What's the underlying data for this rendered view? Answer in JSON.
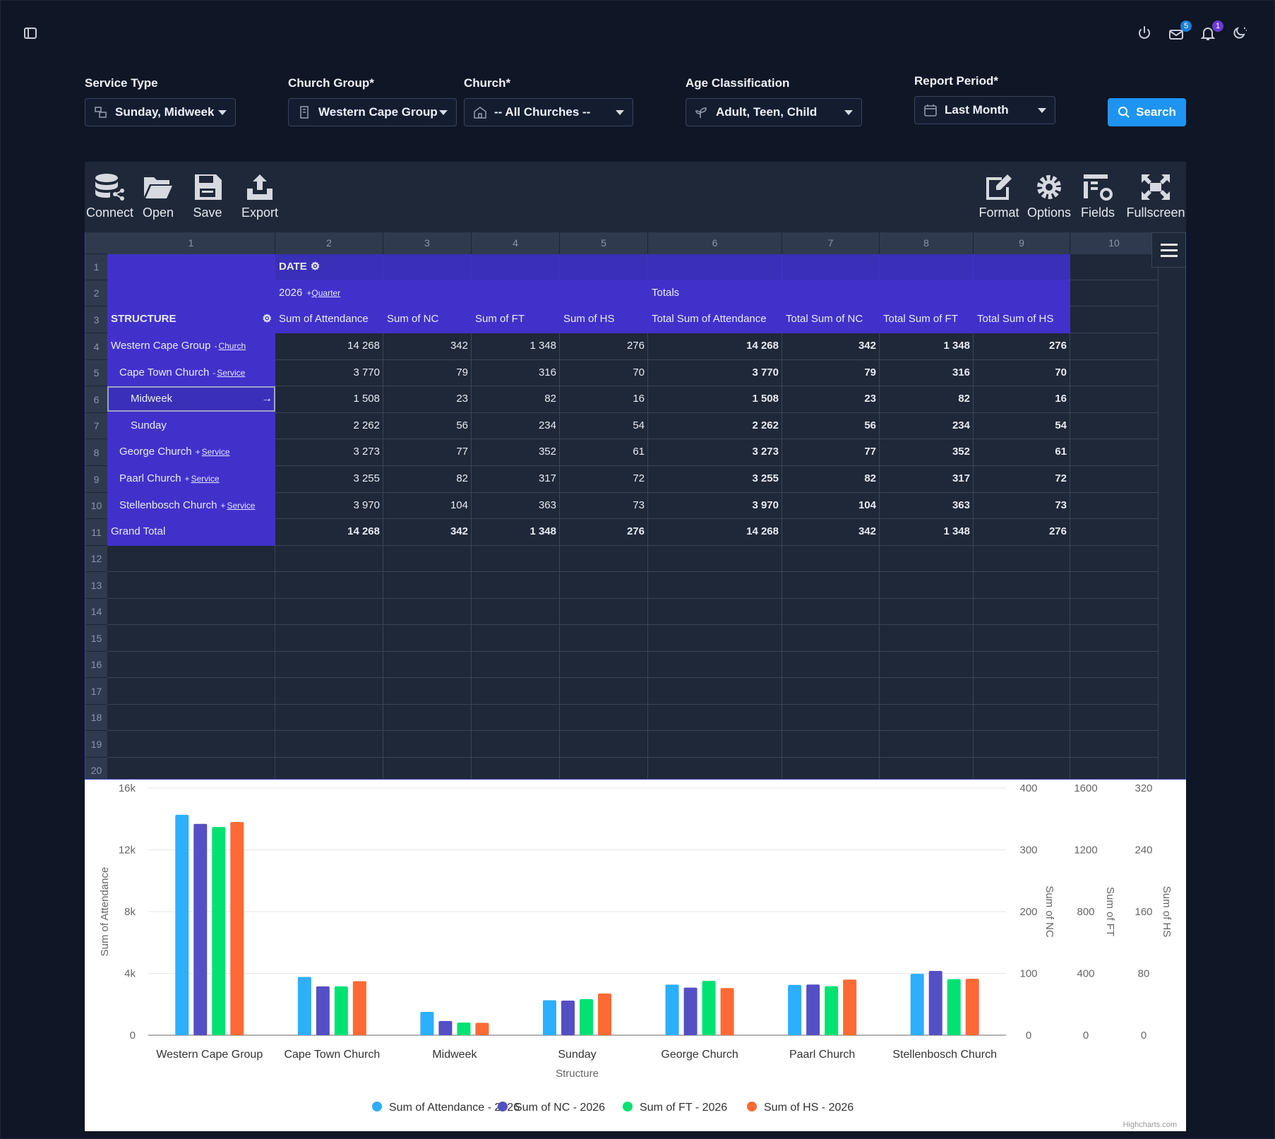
{
  "top_icons": {
    "mail_badge": "5",
    "bell_badge": "1"
  },
  "filters": {
    "service_type": {
      "label": "Service Type",
      "value": "Sunday, Midweek"
    },
    "church_group": {
      "label": "Church Group*",
      "value": "Western Cape Group"
    },
    "church": {
      "label": "Church*",
      "value": "-- All Churches --"
    },
    "age_classification": {
      "label": "Age Classification",
      "value": "Adult, Teen, Child"
    },
    "report_period": {
      "label": "Report Period*",
      "value": "Last Month"
    },
    "search_label": "Search"
  },
  "toolbar": {
    "connect": "Connect",
    "open": "Open",
    "save": "Save",
    "export": "Export",
    "format": "Format",
    "options": "Options",
    "fields": "Fields",
    "fullscreen": "Fullscreen"
  },
  "grid": {
    "col_numbers": [
      "1",
      "2",
      "3",
      "4",
      "5",
      "6",
      "7",
      "8",
      "9",
      "10"
    ],
    "row_numbers": [
      "1",
      "2",
      "3",
      "4",
      "5",
      "6",
      "7",
      "8",
      "9",
      "10",
      "11",
      "12",
      "13",
      "14",
      "15",
      "16",
      "17",
      "18",
      "19",
      "20"
    ],
    "date_label": "DATE",
    "year_label": "2026",
    "year_link_prefix": "+",
    "year_link": "Quarter",
    "totals_label": "Totals",
    "structure_label": "STRUCTURE",
    "measure_headers": [
      "Sum of Attendance",
      "Sum of NC",
      "Sum of FT",
      "Sum of HS",
      "Total Sum of Attendance",
      "Total Sum of NC",
      "Total Sum of FT",
      "Total Sum of HS"
    ],
    "rows": [
      {
        "label": "Western Cape Group",
        "link_prefix": "-",
        "link": "Church",
        "values": [
          "14 268",
          "342",
          "1 348",
          "276",
          "14 268",
          "342",
          "1 348",
          "276"
        ]
      },
      {
        "label": "Cape Town Church",
        "link_prefix": "-",
        "link": "Service",
        "values": [
          "3 770",
          "79",
          "316",
          "70",
          "3 770",
          "79",
          "316",
          "70"
        ]
      },
      {
        "label": "Midweek",
        "link_prefix": "",
        "link": "",
        "values": [
          "1 508",
          "23",
          "82",
          "16",
          "1 508",
          "23",
          "82",
          "16"
        ]
      },
      {
        "label": "Sunday",
        "link_prefix": "",
        "link": "",
        "values": [
          "2 262",
          "56",
          "234",
          "54",
          "2 262",
          "56",
          "234",
          "54"
        ]
      },
      {
        "label": "George Church",
        "link_prefix": "+",
        "link": "Service",
        "values": [
          "3 273",
          "77",
          "352",
          "61",
          "3 273",
          "77",
          "352",
          "61"
        ]
      },
      {
        "label": "Paarl Church",
        "link_prefix": "+",
        "link": "Service",
        "values": [
          "3 255",
          "82",
          "317",
          "72",
          "3 255",
          "82",
          "317",
          "72"
        ]
      },
      {
        "label": "Stellenbosch Church",
        "link_prefix": "+",
        "link": "Service",
        "values": [
          "3 970",
          "104",
          "363",
          "73",
          "3 970",
          "104",
          "363",
          "73"
        ]
      },
      {
        "label": "Grand Total",
        "link_prefix": "",
        "link": "",
        "values": [
          "14 268",
          "342",
          "1 348",
          "276",
          "14 268",
          "342",
          "1 348",
          "276"
        ]
      }
    ]
  },
  "chart_data": {
    "type": "bar",
    "categories": [
      "Western Cape Group",
      "Cape Town Church",
      "Midweek",
      "Sunday",
      "George Church",
      "Paarl Church",
      "Stellenbosch Church"
    ],
    "xlabel": "Structure",
    "series": [
      {
        "name": "Sum of Attendance - 2026",
        "values": [
          14268,
          3770,
          1508,
          2262,
          3273,
          3255,
          3970
        ],
        "color": "#2caffe",
        "axis": "left"
      },
      {
        "name": "Sum of NC - 2026",
        "values": [
          342,
          79,
          23,
          56,
          77,
          82,
          104
        ],
        "color": "#544fc5",
        "axis": "nc"
      },
      {
        "name": "Sum of FT - 2026",
        "values": [
          1348,
          316,
          82,
          234,
          352,
          317,
          363
        ],
        "color": "#00e272",
        "axis": "ft"
      },
      {
        "name": "Sum of HS - 2026",
        "values": [
          276,
          70,
          16,
          54,
          61,
          72,
          73
        ],
        "color": "#fe6a35",
        "axis": "hs"
      }
    ],
    "axes": {
      "left": {
        "label": "Sum of Attendance",
        "ticks": [
          "0",
          "4k",
          "8k",
          "12k",
          "16k"
        ],
        "max": 16000
      },
      "nc": {
        "label": "Sum of NC",
        "ticks": [
          "0",
          "100",
          "200",
          "300",
          "400"
        ],
        "max": 400
      },
      "ft": {
        "label": "Sum of FT",
        "ticks": [
          "0",
          "400",
          "800",
          "1200",
          "1600"
        ],
        "max": 1600
      },
      "hs": {
        "label": "Sum of HS",
        "ticks": [
          "0",
          "80",
          "160",
          "240",
          "320"
        ],
        "max": 320
      }
    },
    "grid": true,
    "legend": "bottom-center",
    "credit": "Highcharts.com"
  }
}
